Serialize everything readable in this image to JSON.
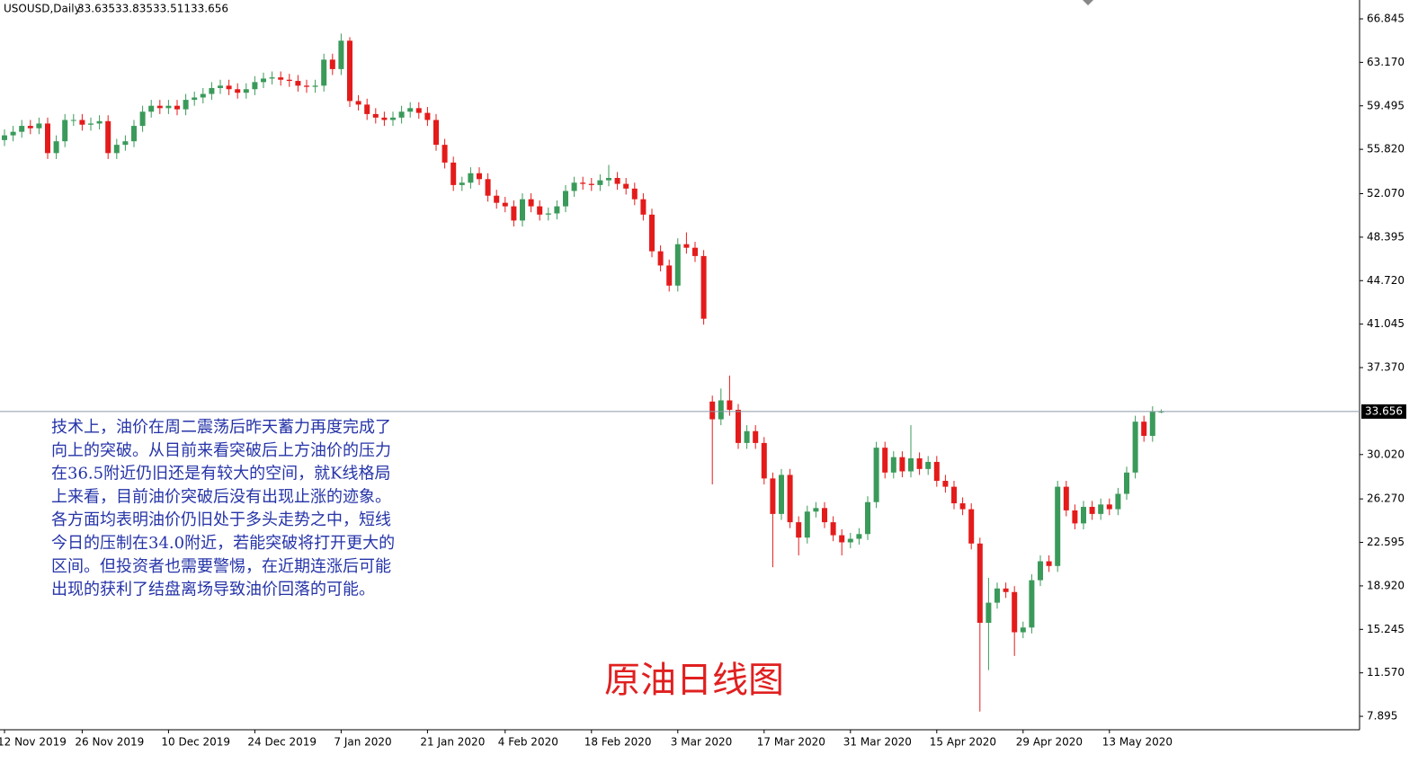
{
  "chart_data": {
    "type": "candlestick",
    "title": "USOUSD,Daily",
    "up_color": "#3a9a5a",
    "down_color": "#e41b1b",
    "categories": [
      "12 Nov 2019",
      null,
      null,
      null,
      null,
      null,
      null,
      null,
      null,
      "26 Nov 2019",
      null,
      null,
      null,
      null,
      null,
      null,
      null,
      null,
      null,
      "10 Dec 2019",
      null,
      null,
      null,
      null,
      null,
      null,
      null,
      null,
      null,
      "24 Dec 2019",
      null,
      null,
      null,
      null,
      null,
      null,
      null,
      null,
      null,
      "7 Jan 2020",
      null,
      null,
      null,
      null,
      null,
      null,
      null,
      null,
      null,
      "21 Jan 2020",
      null,
      null,
      null,
      null,
      null,
      null,
      null,
      null,
      "4 Feb 2020",
      null,
      null,
      null,
      null,
      null,
      null,
      null,
      null,
      null,
      "18 Feb 2020",
      null,
      null,
      null,
      null,
      null,
      null,
      null,
      null,
      null,
      "3 Mar 2020",
      null,
      null,
      null,
      null,
      null,
      null,
      null,
      null,
      null,
      "17 Mar 2020",
      null,
      null,
      null,
      null,
      null,
      null,
      null,
      null,
      null,
      "31 Mar 2020",
      null,
      null,
      null,
      null,
      null,
      null,
      null,
      null,
      null,
      "15 Apr 2020",
      null,
      null,
      null,
      null,
      null,
      null,
      null,
      null,
      null,
      "29 Apr 2020",
      null,
      null,
      null,
      null,
      null,
      null,
      null,
      null,
      null,
      "13 May 2020",
      null,
      null,
      null,
      null,
      null,
      null
    ],
    "open": [
      56.6,
      57.0,
      57.3,
      57.8,
      57.6,
      58.0,
      55.5,
      56.5,
      58.3,
      58.3,
      57.9,
      58.0,
      58.2,
      55.5,
      56.2,
      56.5,
      57.8,
      59.0,
      59.5,
      59.3,
      59.5,
      59.2,
      60.0,
      60.2,
      60.5,
      61.0,
      61.2,
      60.9,
      60.6,
      60.9,
      61.5,
      61.8,
      61.9,
      61.7,
      61.6,
      61.2,
      61.1,
      61.2,
      63.4,
      62.6,
      65.0,
      59.9,
      59.6,
      58.8,
      58.5,
      58.3,
      58.5,
      59.0,
      59.3,
      58.9,
      58.3,
      56.2,
      54.7,
      52.8,
      53.0,
      53.8,
      53.3,
      51.9,
      51.3,
      51.0,
      49.8,
      51.6,
      51.0,
      50.3,
      50.4,
      51.0,
      52.3,
      53.0,
      52.9,
      52.8,
      53.2,
      53.4,
      52.9,
      52.5,
      51.6,
      50.3,
      47.2,
      46.0,
      44.3,
      47.8,
      47.5,
      46.8,
      34.5,
      33.0,
      34.6,
      33.8,
      31.0,
      32.0,
      31.0,
      28.0,
      25.0,
      28.3,
      24.3,
      23.0,
      25.2,
      25.5,
      24.3,
      23.2,
      22.6,
      22.9,
      23.3,
      26.0,
      30.6,
      28.5,
      29.8,
      28.6,
      29.7,
      28.8,
      29.4,
      27.8,
      27.3,
      25.9,
      25.4,
      22.5,
      15.8,
      17.5,
      18.7,
      18.4,
      15.0,
      15.4,
      19.4,
      21.0,
      20.6,
      27.3,
      25.3,
      24.2,
      25.6,
      25.0,
      25.8,
      25.4,
      26.7,
      28.5,
      32.8,
      31.6,
      33.635
    ],
    "high": [
      57.5,
      57.8,
      58.3,
      58.3,
      58.5,
      58.5,
      57.0,
      58.8,
      58.8,
      58.8,
      58.5,
      58.7,
      58.7,
      56.7,
      57.0,
      58.3,
      59.5,
      60.0,
      60.0,
      60.0,
      60.0,
      60.5,
      60.7,
      61.0,
      61.5,
      61.7,
      61.7,
      61.4,
      61.4,
      62.0,
      62.3,
      62.4,
      62.4,
      62.2,
      62.1,
      61.7,
      61.7,
      63.9,
      63.9,
      65.6,
      65.3,
      60.4,
      60.1,
      59.3,
      59.0,
      59.0,
      59.5,
      59.8,
      59.8,
      59.4,
      58.8,
      56.7,
      55.2,
      53.5,
      54.3,
      54.3,
      53.8,
      52.4,
      51.8,
      51.5,
      52.1,
      52.1,
      51.5,
      50.9,
      51.5,
      52.8,
      53.5,
      53.5,
      53.4,
      53.7,
      54.5,
      53.9,
      53.4,
      53.0,
      52.1,
      50.8,
      47.7,
      46.5,
      48.3,
      48.8,
      48.0,
      47.3,
      35.0,
      35.6,
      36.7,
      34.3,
      32.5,
      32.5,
      31.5,
      28.5,
      28.8,
      28.8,
      24.8,
      25.7,
      26.0,
      26.0,
      24.8,
      23.7,
      23.4,
      23.8,
      26.5,
      31.1,
      31.1,
      30.3,
      30.3,
      32.5,
      30.2,
      29.9,
      29.9,
      28.3,
      27.8,
      26.4,
      25.9,
      23.0,
      19.6,
      19.2,
      19.2,
      18.9,
      15.9,
      19.9,
      21.5,
      21.5,
      27.8,
      27.8,
      25.8,
      26.1,
      26.1,
      26.3,
      26.3,
      27.2,
      29.0,
      33.3,
      33.3,
      34.1,
      33.835
    ],
    "low": [
      56.1,
      56.5,
      56.8,
      57.1,
      57.1,
      55.0,
      55.0,
      56.0,
      57.8,
      57.4,
      57.4,
      57.5,
      55.0,
      55.0,
      55.7,
      56.0,
      57.3,
      58.5,
      58.8,
      58.8,
      58.7,
      58.7,
      59.5,
      59.7,
      60.0,
      60.5,
      60.4,
      60.1,
      60.1,
      60.4,
      61.0,
      61.3,
      61.2,
      61.1,
      60.7,
      60.6,
      60.6,
      60.7,
      62.1,
      62.1,
      59.4,
      59.1,
      58.3,
      58.0,
      57.8,
      57.8,
      58.0,
      58.5,
      58.4,
      57.8,
      55.7,
      54.2,
      52.3,
      52.3,
      52.5,
      52.8,
      51.4,
      50.8,
      50.5,
      49.3,
      49.3,
      50.5,
      49.8,
      49.8,
      49.9,
      50.5,
      51.8,
      52.4,
      52.3,
      52.3,
      52.7,
      52.4,
      52.0,
      51.1,
      49.8,
      46.7,
      45.5,
      43.8,
      43.8,
      47.0,
      46.3,
      41.0,
      27.5,
      32.5,
      33.3,
      30.5,
      30.5,
      30.5,
      27.5,
      20.5,
      24.5,
      23.8,
      21.5,
      22.5,
      24.7,
      23.8,
      22.7,
      21.5,
      22.1,
      22.4,
      22.8,
      25.5,
      28.0,
      28.0,
      28.1,
      28.1,
      28.3,
      28.3,
      27.3,
      26.8,
      25.4,
      24.9,
      22.0,
      8.3,
      11.8,
      17.0,
      17.9,
      13.0,
      14.5,
      14.9,
      18.9,
      20.1,
      20.1,
      24.8,
      23.7,
      23.7,
      24.5,
      24.5,
      24.9,
      24.9,
      26.2,
      28.0,
      31.1,
      31.1,
      33.511
    ],
    "close": [
      57.0,
      57.3,
      57.8,
      57.6,
      58.0,
      55.5,
      56.5,
      58.3,
      58.3,
      57.9,
      58.0,
      58.2,
      55.5,
      56.2,
      56.5,
      57.8,
      59.0,
      59.5,
      59.3,
      59.5,
      59.2,
      60.0,
      60.2,
      60.5,
      61.0,
      61.2,
      60.9,
      60.6,
      60.9,
      61.5,
      61.8,
      61.9,
      61.7,
      61.6,
      61.2,
      61.1,
      61.2,
      63.4,
      62.6,
      65.0,
      59.9,
      59.6,
      58.8,
      58.5,
      58.3,
      58.5,
      59.0,
      59.3,
      58.9,
      58.3,
      56.2,
      54.7,
      52.8,
      53.0,
      53.8,
      53.3,
      51.9,
      51.3,
      51.0,
      49.8,
      51.6,
      51.0,
      50.3,
      50.4,
      51.0,
      52.3,
      53.0,
      52.9,
      52.8,
      53.2,
      53.4,
      52.9,
      52.5,
      51.6,
      50.3,
      47.2,
      46.0,
      44.3,
      47.8,
      47.5,
      46.8,
      41.5,
      33.0,
      34.6,
      33.8,
      31.0,
      32.0,
      31.0,
      28.0,
      25.0,
      28.3,
      24.3,
      23.0,
      25.2,
      25.5,
      24.3,
      23.2,
      22.6,
      22.9,
      23.3,
      26.0,
      30.6,
      28.5,
      29.8,
      28.6,
      29.7,
      28.8,
      29.4,
      27.8,
      27.3,
      25.9,
      25.4,
      22.5,
      15.8,
      17.5,
      18.7,
      18.4,
      15.0,
      15.4,
      19.4,
      21.0,
      20.6,
      27.3,
      25.3,
      24.2,
      25.6,
      25.0,
      25.8,
      25.4,
      26.7,
      28.5,
      32.8,
      31.6,
      33.635,
      33.656
    ],
    "ylim": [
      6.76,
      68.44
    ],
    "yticks": [
      7.895,
      {
        "value": 11.57,
        "label": "11.570"
      },
      15.245,
      {
        "value": 18.92,
        "label": "18.920"
      },
      22.595,
      {
        "value": 26.27,
        "label": "26.270"
      },
      {
        "value": 30.02,
        "label": "30.020"
      },
      {
        "value": 37.37,
        "label": "37.370"
      },
      41.045,
      {
        "value": 44.72,
        "label": "44.720"
      },
      48.395,
      {
        "value": 52.07,
        "label": "52.070"
      },
      {
        "value": 55.82,
        "label": "55.820"
      },
      59.495,
      {
        "value": 63.17,
        "label": "63.170"
      },
      66.845
    ],
    "annotation_lines": [
      "技术上，油价在周二震荡后昨天蓄力再度完成了",
      "向上的突破。从目前来看突破后上方油价的压力",
      "在36.5附近仍旧还是有较大的空间，就K线格局",
      "上来看，目前油价突破后没有出现止涨的迹象。",
      "各方面均表明油价仍旧处于多头走势之中，短线",
      "今日的压制在34.0附近，若能突破将打开更大的",
      "区间。但投资者也需要警惕，在近期连涨后可能",
      "出现的获利了结盘离场导致油价回落的可能。"
    ],
    "caption": "原油日线图"
  }
}
